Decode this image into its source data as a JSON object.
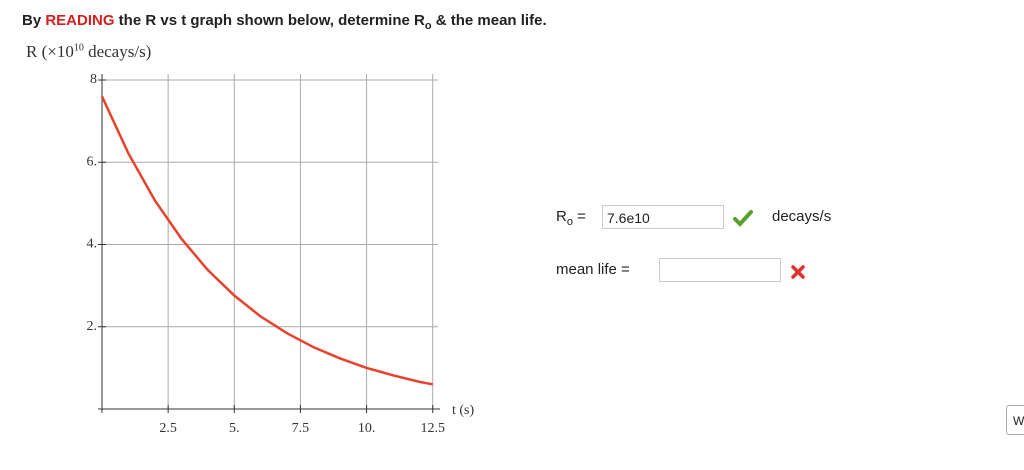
{
  "question": [
    "By ",
    "READING",
    " the R vs t graph shown below, determine R",
    "o",
    " & the mean life."
  ],
  "graph": {
    "type": "line",
    "y_label": [
      "R (×10",
      "10",
      " decays/s)"
    ],
    "x_label": "t (s)",
    "xlim": [
      0,
      12.7
    ],
    "ylim": [
      0,
      8
    ],
    "xticks": [
      2.5,
      {
        "value": 5,
        "label": "5."
      },
      7.5,
      {
        "value": 10,
        "label": "10."
      },
      12.5
    ],
    "yticks": [
      {
        "value": 2,
        "label": "2."
      },
      {
        "value": 4,
        "label": "4."
      },
      {
        "value": 6,
        "label": "6."
      },
      8
    ],
    "grid": true,
    "curve": {
      "color": "#e8412c",
      "t": [
        0,
        1,
        2,
        3,
        4,
        5,
        6,
        7,
        8,
        9,
        10,
        11,
        12,
        12.5
      ],
      "values": [
        7.6,
        6.21,
        5.07,
        4.14,
        3.38,
        2.76,
        2.25,
        1.84,
        1.5,
        1.23,
        1.0,
        0.82,
        0.66,
        0.6
      ]
    }
  },
  "answers": [
    {
      "label": [
        "R",
        "o",
        " = "
      ],
      "input": "7.6e10",
      "unit": "decays/s"
    },
    {
      "label": "mean life =",
      "input": ""
    }
  ],
  "edge_button": "W"
}
